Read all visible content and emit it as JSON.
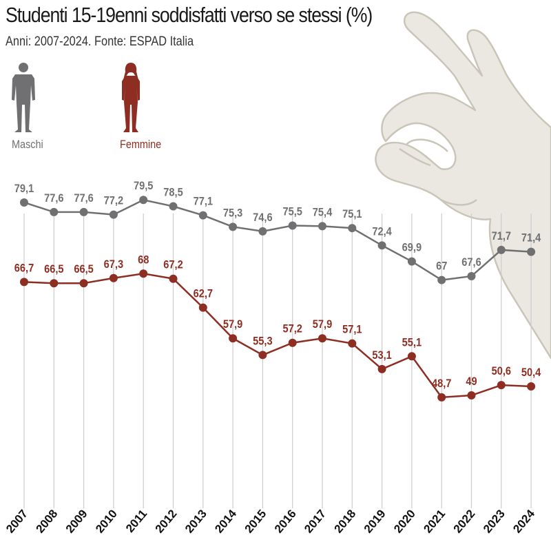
{
  "header": {
    "title": "Studenti 15-19enni soddisfatti verso se stessi (%)",
    "subtitle": "Anni: 2007-2024. Fonte: ESPAD Italia"
  },
  "legend": {
    "male_label": "Maschi",
    "female_label": "Femmine"
  },
  "colors": {
    "male": "#707072",
    "female": "#8e2d22",
    "gridline": "#cccccc",
    "hand_fill": "#ebe8e1",
    "hand_stroke": "#c9c5b9"
  },
  "icons": [
    "male-person-icon",
    "female-person-icon",
    "ok-hand-gesture-icon"
  ],
  "chart_data": {
    "type": "line",
    "categories": [
      "2007",
      "2008",
      "2009",
      "2010",
      "2011",
      "2012",
      "2013",
      "2014",
      "2015",
      "2016",
      "2017",
      "2018",
      "2019",
      "2020",
      "2021",
      "2022",
      "2023",
      "2024"
    ],
    "series": [
      {
        "name": "Maschi",
        "values": [
          79.1,
          77.6,
          77.6,
          77.2,
          79.5,
          78.5,
          77.1,
          75.3,
          74.6,
          75.5,
          75.4,
          75.1,
          72.4,
          69.9,
          67,
          67.6,
          71.7,
          71.4
        ],
        "labels": [
          "79,1",
          "77,6",
          "77,6",
          "77,2",
          "79,5",
          "78,5",
          "77,1",
          "75,3",
          "74,6",
          "75,5",
          "75,4",
          "75,1",
          "72,4",
          "69,9",
          "67",
          "67,6",
          "71,7",
          "71,4"
        ]
      },
      {
        "name": "Femmine",
        "values": [
          66.7,
          66.5,
          66.5,
          67.3,
          68,
          67.2,
          62.7,
          57.9,
          55.3,
          57.2,
          57.9,
          57.1,
          53.1,
          55.1,
          48.7,
          49,
          50.6,
          50.4
        ],
        "labels": [
          "66,7",
          "66,5",
          "66,5",
          "67,3",
          "68",
          "67,2",
          "62,7",
          "57,9",
          "55,3",
          "57,2",
          "57,9",
          "57,1",
          "53,1",
          "55,1",
          "48,7",
          "49",
          "50,6",
          "50,4"
        ]
      }
    ],
    "grid": "vertical lines at each year",
    "legend_position": "top-left"
  }
}
